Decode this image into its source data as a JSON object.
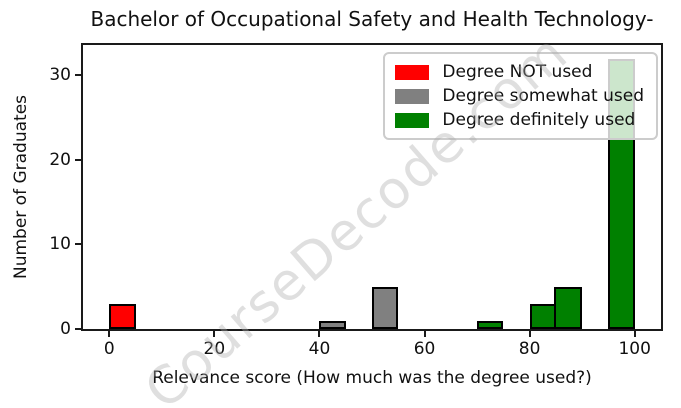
{
  "title": "Bachelor of Occupational Safety and Health Technology-",
  "watermark": "CourseDecode.com",
  "chart_data": {
    "type": "bar",
    "title": "Bachelor of Occupational Safety and Health Technology-",
    "xlabel": "Relevance score (How much was the degree used?)",
    "ylabel": "Number of Graduates",
    "xlim": [
      -5,
      105
    ],
    "ylim": [
      0,
      33.6
    ],
    "xticks": [
      0,
      20,
      40,
      60,
      80,
      100
    ],
    "yticks": [
      0,
      10,
      20,
      30
    ],
    "grid": false,
    "bin_width": 5,
    "bar_edge_color": "#000000",
    "bars": [
      {
        "start": 0,
        "end": 5,
        "count": 3,
        "group": "Degree NOT used",
        "color": "#ff0000"
      },
      {
        "start": 40,
        "end": 45,
        "count": 1,
        "group": "Degree somewhat used",
        "color": "#808080"
      },
      {
        "start": 50,
        "end": 55,
        "count": 5,
        "group": "Degree somewhat used",
        "color": "#808080"
      },
      {
        "start": 70,
        "end": 75,
        "count": 1,
        "group": "Degree definitely used",
        "color": "#008000"
      },
      {
        "start": 80,
        "end": 85,
        "count": 3,
        "group": "Degree definitely used",
        "color": "#008000"
      },
      {
        "start": 85,
        "end": 90,
        "count": 5,
        "group": "Degree definitely used",
        "color": "#008000"
      },
      {
        "start": 95,
        "end": 100,
        "count": 32,
        "group": "Degree definitely used",
        "color": "#008000"
      }
    ],
    "legend": {
      "position": "upper right",
      "entries": [
        {
          "label": "Degree NOT used",
          "color": "#ff0000"
        },
        {
          "label": "Degree somewhat used",
          "color": "#808080"
        },
        {
          "label": "Degree definitely used",
          "color": "#008000"
        }
      ]
    }
  },
  "colors": {
    "background": "#ffffff",
    "spine": "#1a1a1a",
    "text": "#111111",
    "legend_border": "#cccccc",
    "watermark": "#aaaaaa"
  }
}
